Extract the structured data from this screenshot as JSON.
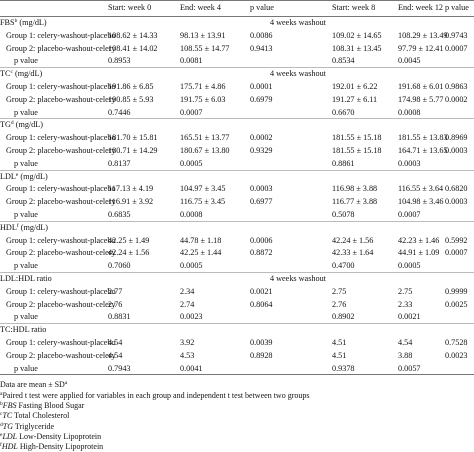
{
  "table": {
    "header": [
      "",
      "Start: week 0",
      "End: week 4",
      "p value",
      "",
      "Start: week 8",
      "End: week 12",
      "p value"
    ],
    "sections": [
      {
        "name": "FBS",
        "sup": "b",
        "unit": "(mg/dL)",
        "note": "4 weeks washout",
        "rows": [
          [
            "Group 1: celery-washout-placebo",
            "108.62 ± 14.33",
            "98.13 ± 13.91",
            "0.0086",
            "109.02 ± 14.65",
            "108.29 ± 13.49",
            "0.9743"
          ],
          [
            "Group 2: placebo-washout-celery",
            "108.41 ± 14.02",
            "108.55 ± 14.77",
            "0.9413",
            "108.31 ± 13.45",
            "97.79 ± 12.41",
            "0.0007"
          ],
          [
            "p value",
            "0.8953",
            "0.0081",
            "",
            "0.8534",
            "0.0045",
            ""
          ]
        ]
      },
      {
        "name": "TC",
        "sup": "c",
        "unit": "(mg/dL)",
        "note": "4 weeks washout",
        "rows": [
          [
            "Group 1: celery-washout-placebo",
            "191.86 ± 6.85",
            "175.71 ± 4.86",
            "0.0001",
            "192.01 ± 6.22",
            "191.68 ± 6.01",
            "0.9863"
          ],
          [
            "Group 2: placebo-washout-celery",
            "190.85 ± 5.93",
            "191.75 ± 6.03",
            "0.6979",
            "191.27 ± 6.11",
            "174.98 ± 5.77",
            "0.0002"
          ],
          [
            "p value",
            "0.7446",
            "0.0007",
            "",
            "0.6670",
            "0.0008",
            ""
          ]
        ]
      },
      {
        "name": "TG",
        "sup": "d",
        "unit": "(mg/dL)",
        "rows": [
          [
            "Group 1: celery-washout-placebo",
            "181.70 ± 15.81",
            "165.51 ± 13.77",
            "0.0002",
            "181.55 ± 15.18",
            "181.55 ± 13.83",
            "0.8969"
          ],
          [
            "Group 2: placebo-washout-celery",
            "180.71 ± 14.29",
            "180.67 ± 13.80",
            "0.9329",
            "181.55 ± 15.18",
            "164.71 ± 13.65",
            "0.0003"
          ],
          [
            "p value",
            "0.8137",
            "0.0005",
            "",
            "0.8861",
            "0.0003",
            ""
          ]
        ]
      },
      {
        "name": "LDL",
        "sup": "e",
        "unit": "(mg/dL)",
        "rows": [
          [
            "Group 1: celery-washout-placebo",
            "117.13 ± 4.19",
            "104.97 ± 3.45",
            "0.0003",
            "116.98 ± 3.88",
            "116.55 ± 3.64",
            "0.6820"
          ],
          [
            "Group 2: placebo-washout-celery",
            "116.91 ± 3.92",
            "116.75 ± 3.45",
            "0.6977",
            "116.77 ± 3.88",
            "104.98 ± 3.46",
            "0.0003"
          ],
          [
            "p value",
            "0.6835",
            "0.0008",
            "",
            "0.5078",
            "0.0007",
            ""
          ]
        ]
      },
      {
        "name": "HDL",
        "sup": "f",
        "unit": "(mg/dL)",
        "rows": [
          [
            "Group 1: celery-washout-placebo",
            "42.25 ± 1.49",
            "44.78 ± 1.18",
            "0.0006",
            "42.24 ± 1.56",
            "42.23 ± 1.46",
            "0.5992"
          ],
          [
            "Group 2: placebo-washout-celery",
            "42.24 ± 1.56",
            "42.25 ± 1.44",
            "0.8872",
            "42.33 ± 1.64",
            "44.91 ± 1.09",
            "0.0007"
          ],
          [
            "p value",
            "0.7060",
            "0.0005",
            "",
            "0.4700",
            "0.0005",
            ""
          ]
        ]
      },
      {
        "name": "LDL:HDL ratio",
        "note": "4 weeks washout",
        "rows": [
          [
            "Group 1: celery-washout-placebo",
            "2.77",
            "2.34",
            "0.0021",
            "2.75",
            "2.75",
            "0.9999"
          ],
          [
            "Group 2: placebo-washout-celery",
            "2.76",
            "2.74",
            "0.8064",
            "2.76",
            "2.33",
            "0.0025"
          ],
          [
            "p value",
            "0.8831",
            "0.0023",
            "",
            "0.8902",
            "0.0021",
            ""
          ]
        ]
      },
      {
        "name": "TC:HDL ratio",
        "rows": [
          [
            "Group 1: celery-washout-placebo",
            "4.54",
            "3.92",
            "0.0039",
            "4.51",
            "4.54",
            "0.7528"
          ],
          [
            "Group 2: placebo-washout-celery",
            "4.54",
            "4.53",
            "0.8928",
            "4.51",
            "3.88",
            "0.0023"
          ],
          [
            "p value",
            "0.7943",
            "0.0041",
            "",
            "0.9378",
            "0.0057",
            ""
          ]
        ]
      }
    ]
  },
  "footnotes": [
    {
      "text": "Data are mean ± SD",
      "sup": "a"
    },
    {
      "sup": "a",
      "text": "Paired t test were applied for variables in each group and independent t test between two groups"
    },
    {
      "sup": "b",
      "abbr": "FBS",
      "text": "Fasting Blood Sugar"
    },
    {
      "sup": "c",
      "abbr": "TC",
      "text": "Total Cholesterol"
    },
    {
      "sup": "d",
      "abbr": "TG",
      "text": "Triglyceride"
    },
    {
      "sup": "e",
      "abbr": "LDL",
      "text": "Low-Density Lipoprotein"
    },
    {
      "sup": "f",
      "abbr": "HDL",
      "text": "High-Density Lipoprotein"
    }
  ]
}
